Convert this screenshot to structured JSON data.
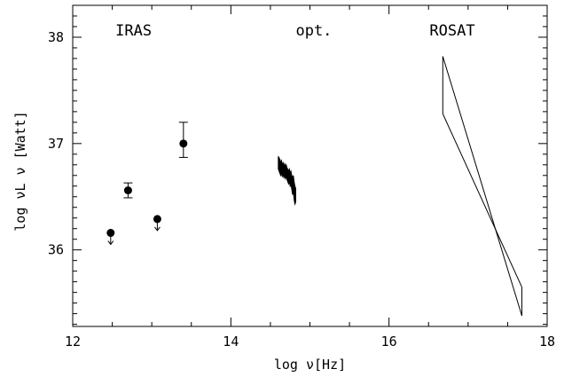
{
  "chart_data": {
    "type": "scatter",
    "xlabel": "log ν[Hz]",
    "ylabel": "log νL ν  [Watt]",
    "xlim": [
      12,
      18
    ],
    "ylim": [
      35.28,
      38.3
    ],
    "x_ticks": [
      12,
      14,
      16,
      18
    ],
    "x_tick_labels": [
      "12",
      "14",
      "16",
      "18"
    ],
    "y_ticks": [
      36,
      37,
      38
    ],
    "y_tick_labels": [
      "36",
      "37",
      "38"
    ],
    "annotations": [
      {
        "text": "IRAS",
        "x": 12.77,
        "y": 38.0
      },
      {
        "text": "opt.",
        "x": 15.05,
        "y": 38.0
      },
      {
        "text": "ROSAT",
        "x": 16.8,
        "y": 38.0
      }
    ],
    "series": [
      {
        "kind": "points",
        "points": [
          {
            "x": 12.48,
            "y": 36.16,
            "upper_limit": true
          },
          {
            "x": 12.7,
            "y": 36.56,
            "err_low": 36.49,
            "err_high": 36.63
          },
          {
            "x": 13.07,
            "y": 36.29,
            "upper_limit": true
          },
          {
            "x": 13.4,
            "y": 37.0,
            "err_low": 36.87,
            "err_high": 37.2
          }
        ]
      },
      {
        "kind": "optical-spectrum",
        "x": [
          14.6,
          14.62,
          14.63,
          14.64,
          14.65,
          14.66,
          14.67,
          14.68,
          14.69,
          14.7,
          14.71,
          14.72,
          14.73,
          14.74,
          14.75,
          14.76,
          14.77,
          14.78,
          14.79,
          14.8,
          14.81,
          14.82
        ],
        "y_high": [
          36.88,
          36.85,
          36.82,
          36.84,
          36.8,
          36.82,
          36.79,
          36.81,
          36.78,
          36.8,
          36.77,
          36.76,
          36.74,
          36.76,
          36.72,
          36.74,
          36.7,
          36.68,
          36.7,
          36.64,
          36.6,
          36.58
        ],
        "y_low": [
          36.76,
          36.72,
          36.7,
          36.72,
          36.69,
          36.71,
          36.68,
          36.7,
          36.67,
          36.69,
          36.66,
          36.64,
          36.62,
          36.64,
          36.6,
          36.62,
          36.57,
          36.52,
          36.55,
          36.47,
          36.43,
          36.45
        ]
      },
      {
        "kind": "xray-bowtie",
        "x": [
          16.68,
          17.68
        ],
        "line_a": [
          37.82,
          35.38
        ],
        "line_b": [
          37.28,
          35.65
        ]
      }
    ]
  }
}
